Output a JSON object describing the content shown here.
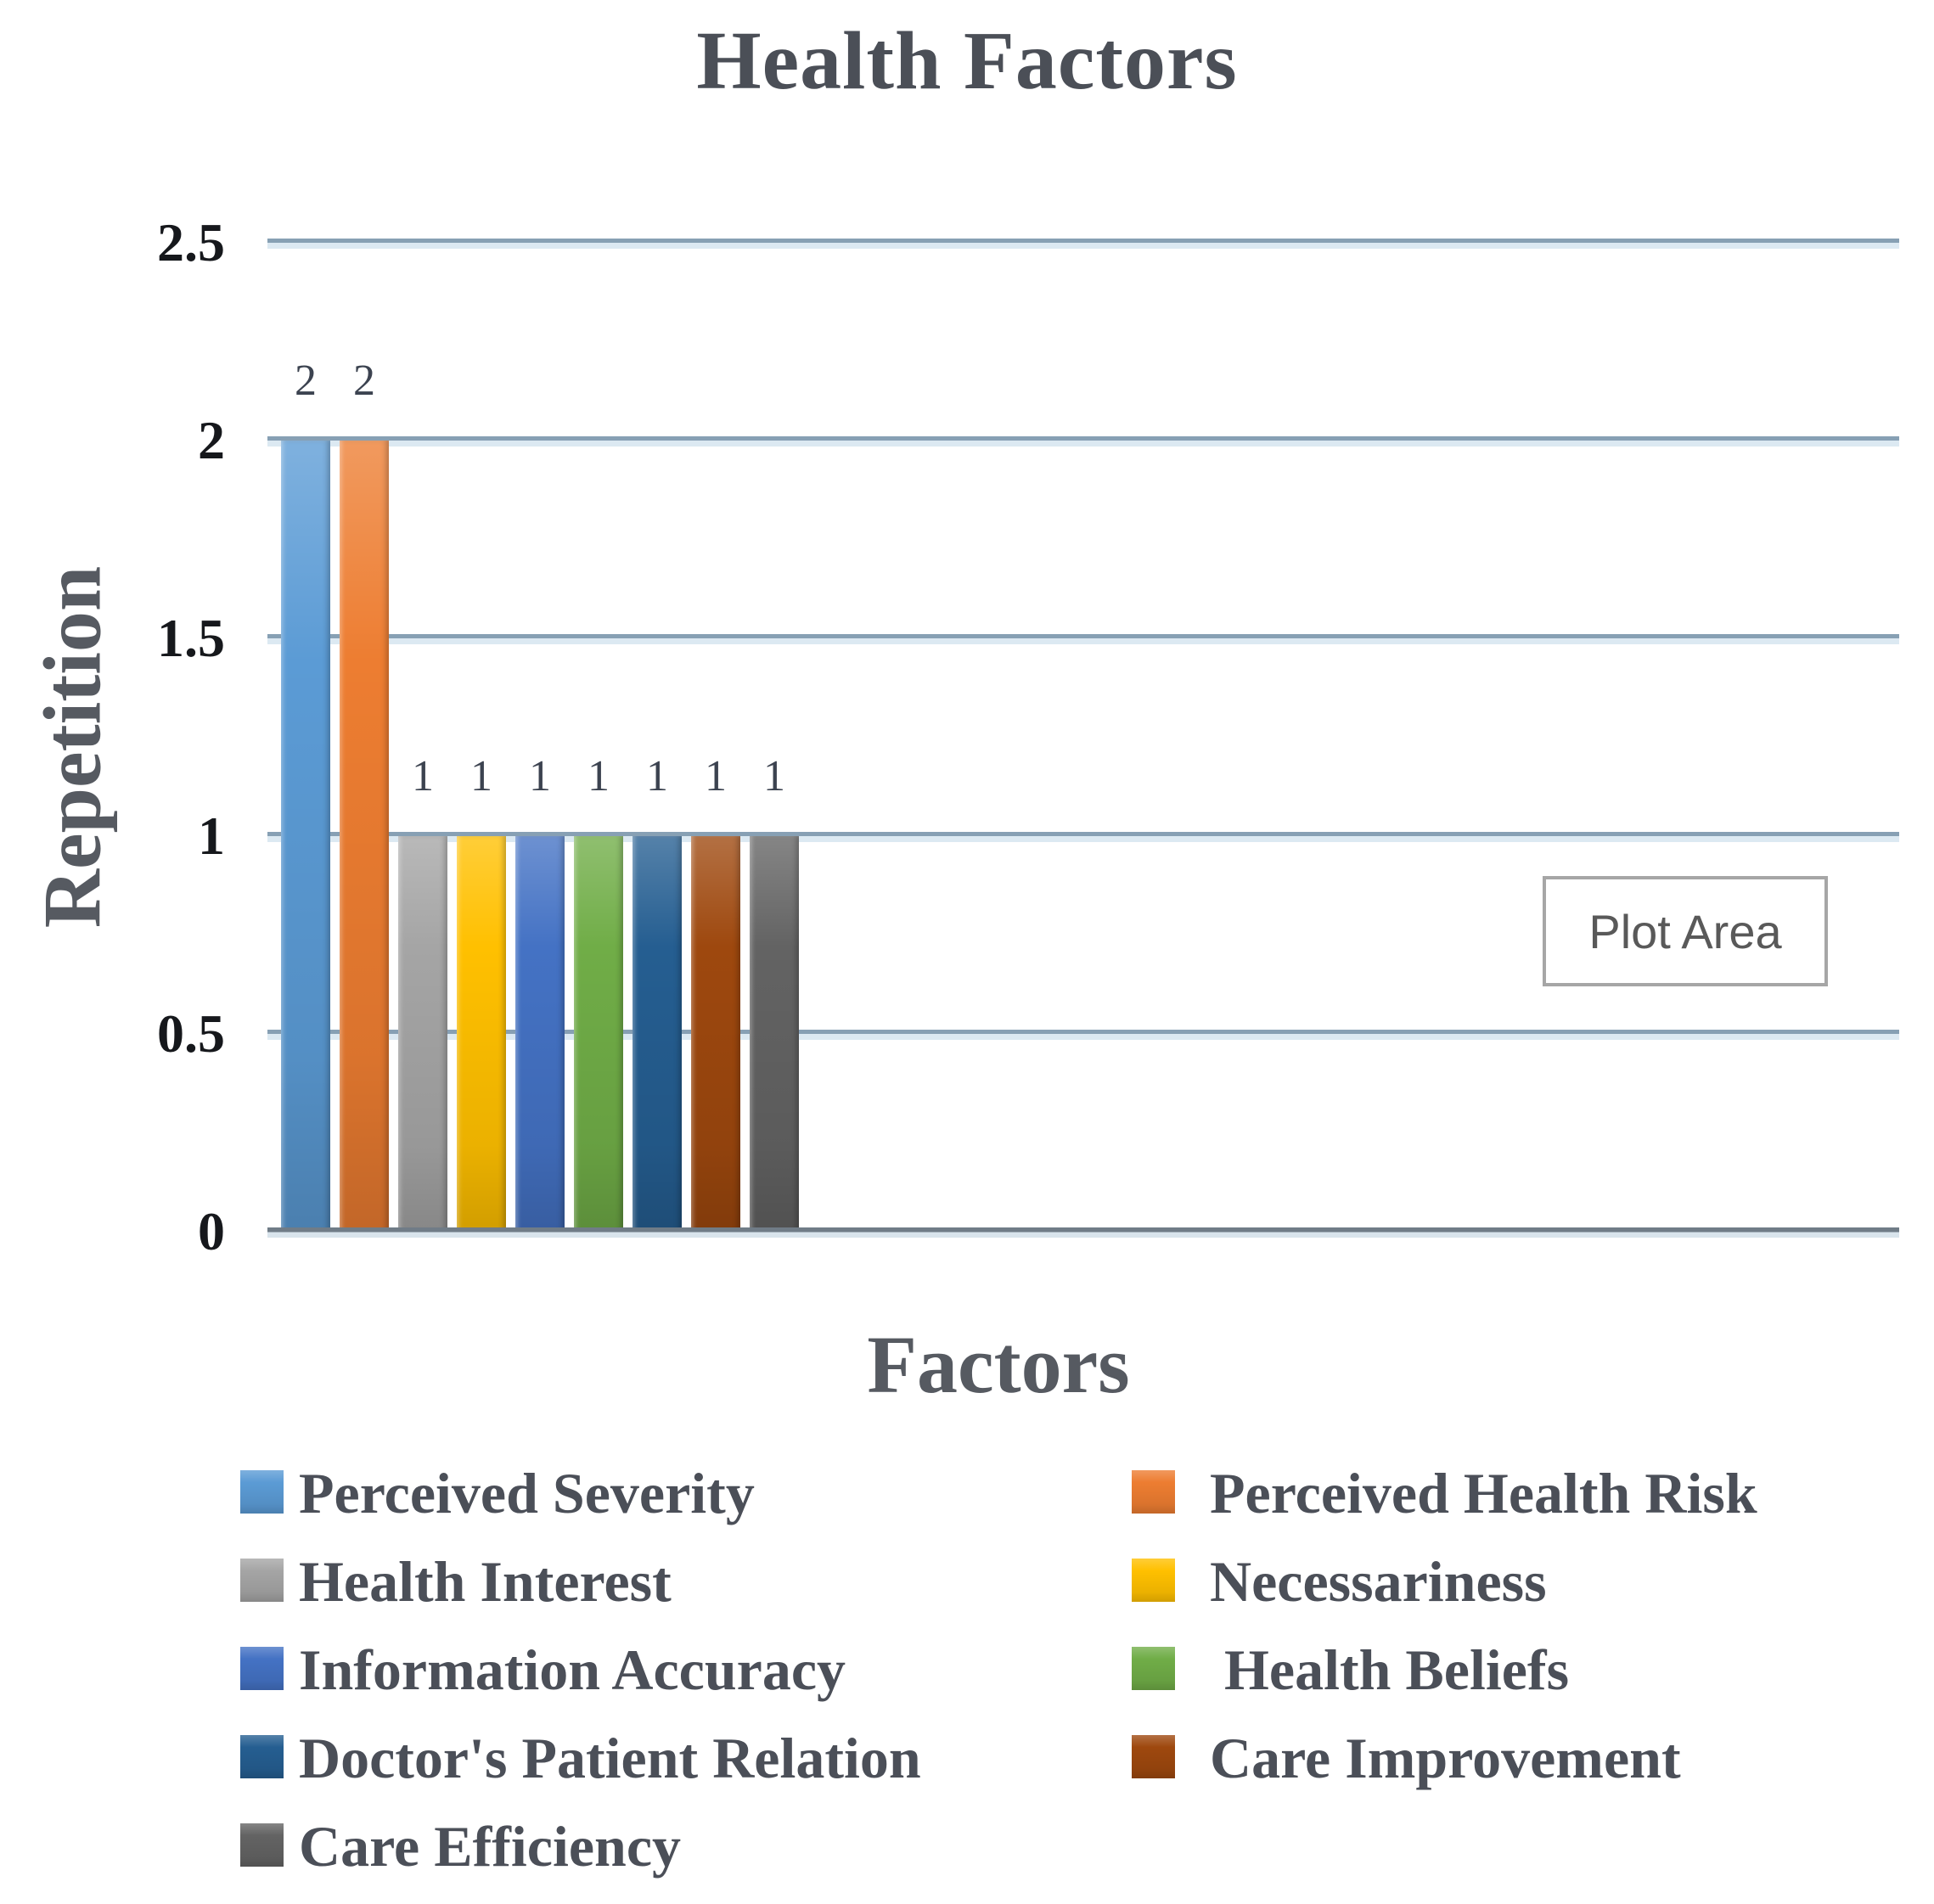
{
  "chart": {
    "title": "Health Factors",
    "y_axis_title": "Repetition",
    "x_axis_title": "Factors",
    "plot_area_label": "Plot Area",
    "y_ticks": [
      "2.5",
      "2",
      "1.5",
      "1",
      "0.5",
      "0"
    ]
  },
  "chart_data": {
    "type": "bar",
    "title": "Health Factors",
    "xlabel": "Factors",
    "ylabel": "Repetition",
    "ylim": [
      0,
      2.5
    ],
    "ytick_interval": 0.5,
    "grid": true,
    "legend_position": "bottom-two-columns",
    "categories": [
      "Perceived Severity",
      "Perceived Health Risk",
      "Health Interest",
      "Necessariness",
      "Information Accuracy",
      "Health Beliefs",
      "Doctor's Patient Relation",
      "Care Improvement",
      "Care Efficiency"
    ],
    "values": [
      2,
      2,
      1,
      1,
      1,
      1,
      1,
      1,
      1
    ],
    "data_labels": [
      "2",
      "2",
      "1",
      "1",
      "1",
      "1",
      "1",
      "1",
      "1"
    ],
    "series": [
      {
        "name": "Perceived Severity",
        "value": 2,
        "data_label": "2",
        "color": "#5B9BD5",
        "legend_label": "Perceived Severity"
      },
      {
        "name": "Perceived Health Risk",
        "value": 2,
        "data_label": "2",
        "color": "#ED7D31",
        "legend_label": "Perceived Health Risk"
      },
      {
        "name": "Health Interest",
        "value": 1,
        "data_label": "1",
        "color": "#A5A5A5",
        "legend_label": "Health Interest"
      },
      {
        "name": "Necessariness",
        "value": 1,
        "data_label": "1",
        "color": "#FFC000",
        "legend_label": "Necessariness"
      },
      {
        "name": "Information Accuracy",
        "value": 1,
        "data_label": "1",
        "color": "#4472C4",
        "legend_label": "Information Accuracy"
      },
      {
        "name": "Health Beliefs",
        "value": 1,
        "data_label": "1",
        "color": "#70AD47",
        "legend_label": " Health Beliefs"
      },
      {
        "name": "Doctor's Patient Relation",
        "value": 1,
        "data_label": "1",
        "color": "#255E91",
        "legend_label": "Doctor's Patient Relation"
      },
      {
        "name": "Care Improvement",
        "value": 1,
        "data_label": "1",
        "color": "#9E480E",
        "legend_label": "Care Improvement"
      },
      {
        "name": "Care Efficiency",
        "value": 1,
        "data_label": "1",
        "color": "#636363",
        "legend_label": "Care Efficiency"
      }
    ]
  },
  "colors": {
    "gridline": "#87A0B4",
    "gridline_light_edge": "#DCE9F2",
    "axis_baseline": "#707C87",
    "title_text": "#4B4F57",
    "axis_title_text": "#565A61",
    "tick_text": "#16181C",
    "data_label_text": "#3C4350",
    "legend_text": "#4B4F58",
    "plot_area_border": "#A6A6A6",
    "plot_area_text": "#595959",
    "background": "#FFFFFF"
  }
}
